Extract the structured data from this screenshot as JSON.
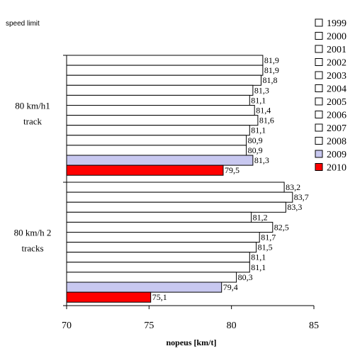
{
  "chart_data": {
    "type": "bar",
    "orientation": "horizontal",
    "corner_label": "speed limit",
    "xlabel": "nopeus [km/t]",
    "xlim": [
      70,
      85
    ],
    "xticks": [
      "70",
      "75",
      "80",
      "85"
    ],
    "legend_position": "right",
    "groups": [
      {
        "label_lines": [
          "80 km/h1",
          "track"
        ],
        "bars": [
          {
            "year": "1999",
            "value": 81.9,
            "label": "81,9"
          },
          {
            "year": "2000",
            "value": 81.9,
            "label": "81,9"
          },
          {
            "year": "2001",
            "value": 81.8,
            "label": "81,8"
          },
          {
            "year": "2002",
            "value": 81.3,
            "label": "81,3"
          },
          {
            "year": "2003",
            "value": 81.1,
            "label": "81,1"
          },
          {
            "year": "2004",
            "value": 81.4,
            "label": "81,4"
          },
          {
            "year": "2005",
            "value": 81.6,
            "label": "81,6"
          },
          {
            "year": "2006",
            "value": 81.1,
            "label": "81,1"
          },
          {
            "year": "2007",
            "value": 80.9,
            "label": "80,9"
          },
          {
            "year": "2008",
            "value": 80.9,
            "label": "80,9"
          },
          {
            "year": "2009",
            "value": 81.3,
            "label": "81,3"
          },
          {
            "year": "2010",
            "value": 79.5,
            "label": "79,5"
          }
        ]
      },
      {
        "label_lines": [
          "80 km/h 2",
          "tracks"
        ],
        "bars": [
          {
            "year": "1999",
            "value": 83.2,
            "label": "83,2"
          },
          {
            "year": "2000",
            "value": 83.7,
            "label": "83,7"
          },
          {
            "year": "2001",
            "value": 83.3,
            "label": "83,3"
          },
          {
            "year": "2002",
            "value": 81.2,
            "label": "81,2"
          },
          {
            "year": "2003",
            "value": 82.5,
            "label": "82,5"
          },
          {
            "year": "2004",
            "value": 81.7,
            "label": "81,7"
          },
          {
            "year": "2005",
            "value": 81.5,
            "label": "81,5"
          },
          {
            "year": "2006",
            "value": 81.1,
            "label": "81,1"
          },
          {
            "year": "2007",
            "value": 81.1,
            "label": "81,1"
          },
          {
            "year": "2008",
            "value": 80.3,
            "label": "80,3"
          },
          {
            "year": "2009",
            "value": 79.4,
            "label": "79,4"
          },
          {
            "year": "2010",
            "value": 75.1,
            "label": "75,1"
          }
        ]
      }
    ],
    "legend": [
      {
        "label": "1999",
        "color": "#ffffff"
      },
      {
        "label": "2000",
        "color": "#ffffff"
      },
      {
        "label": "2001",
        "color": "#ffffff"
      },
      {
        "label": "2002",
        "color": "#ffffff"
      },
      {
        "label": "2003",
        "color": "#ffffff"
      },
      {
        "label": "2004",
        "color": "#ffffff"
      },
      {
        "label": "2005",
        "color": "#ffffff"
      },
      {
        "label": "2006",
        "color": "#ffffff"
      },
      {
        "label": "2007",
        "color": "#ffffff"
      },
      {
        "label": "2008",
        "color": "#ffffff"
      },
      {
        "label": "2009",
        "color": "#c8c8f0"
      },
      {
        "label": "2010",
        "color": "#ff0000"
      }
    ]
  }
}
